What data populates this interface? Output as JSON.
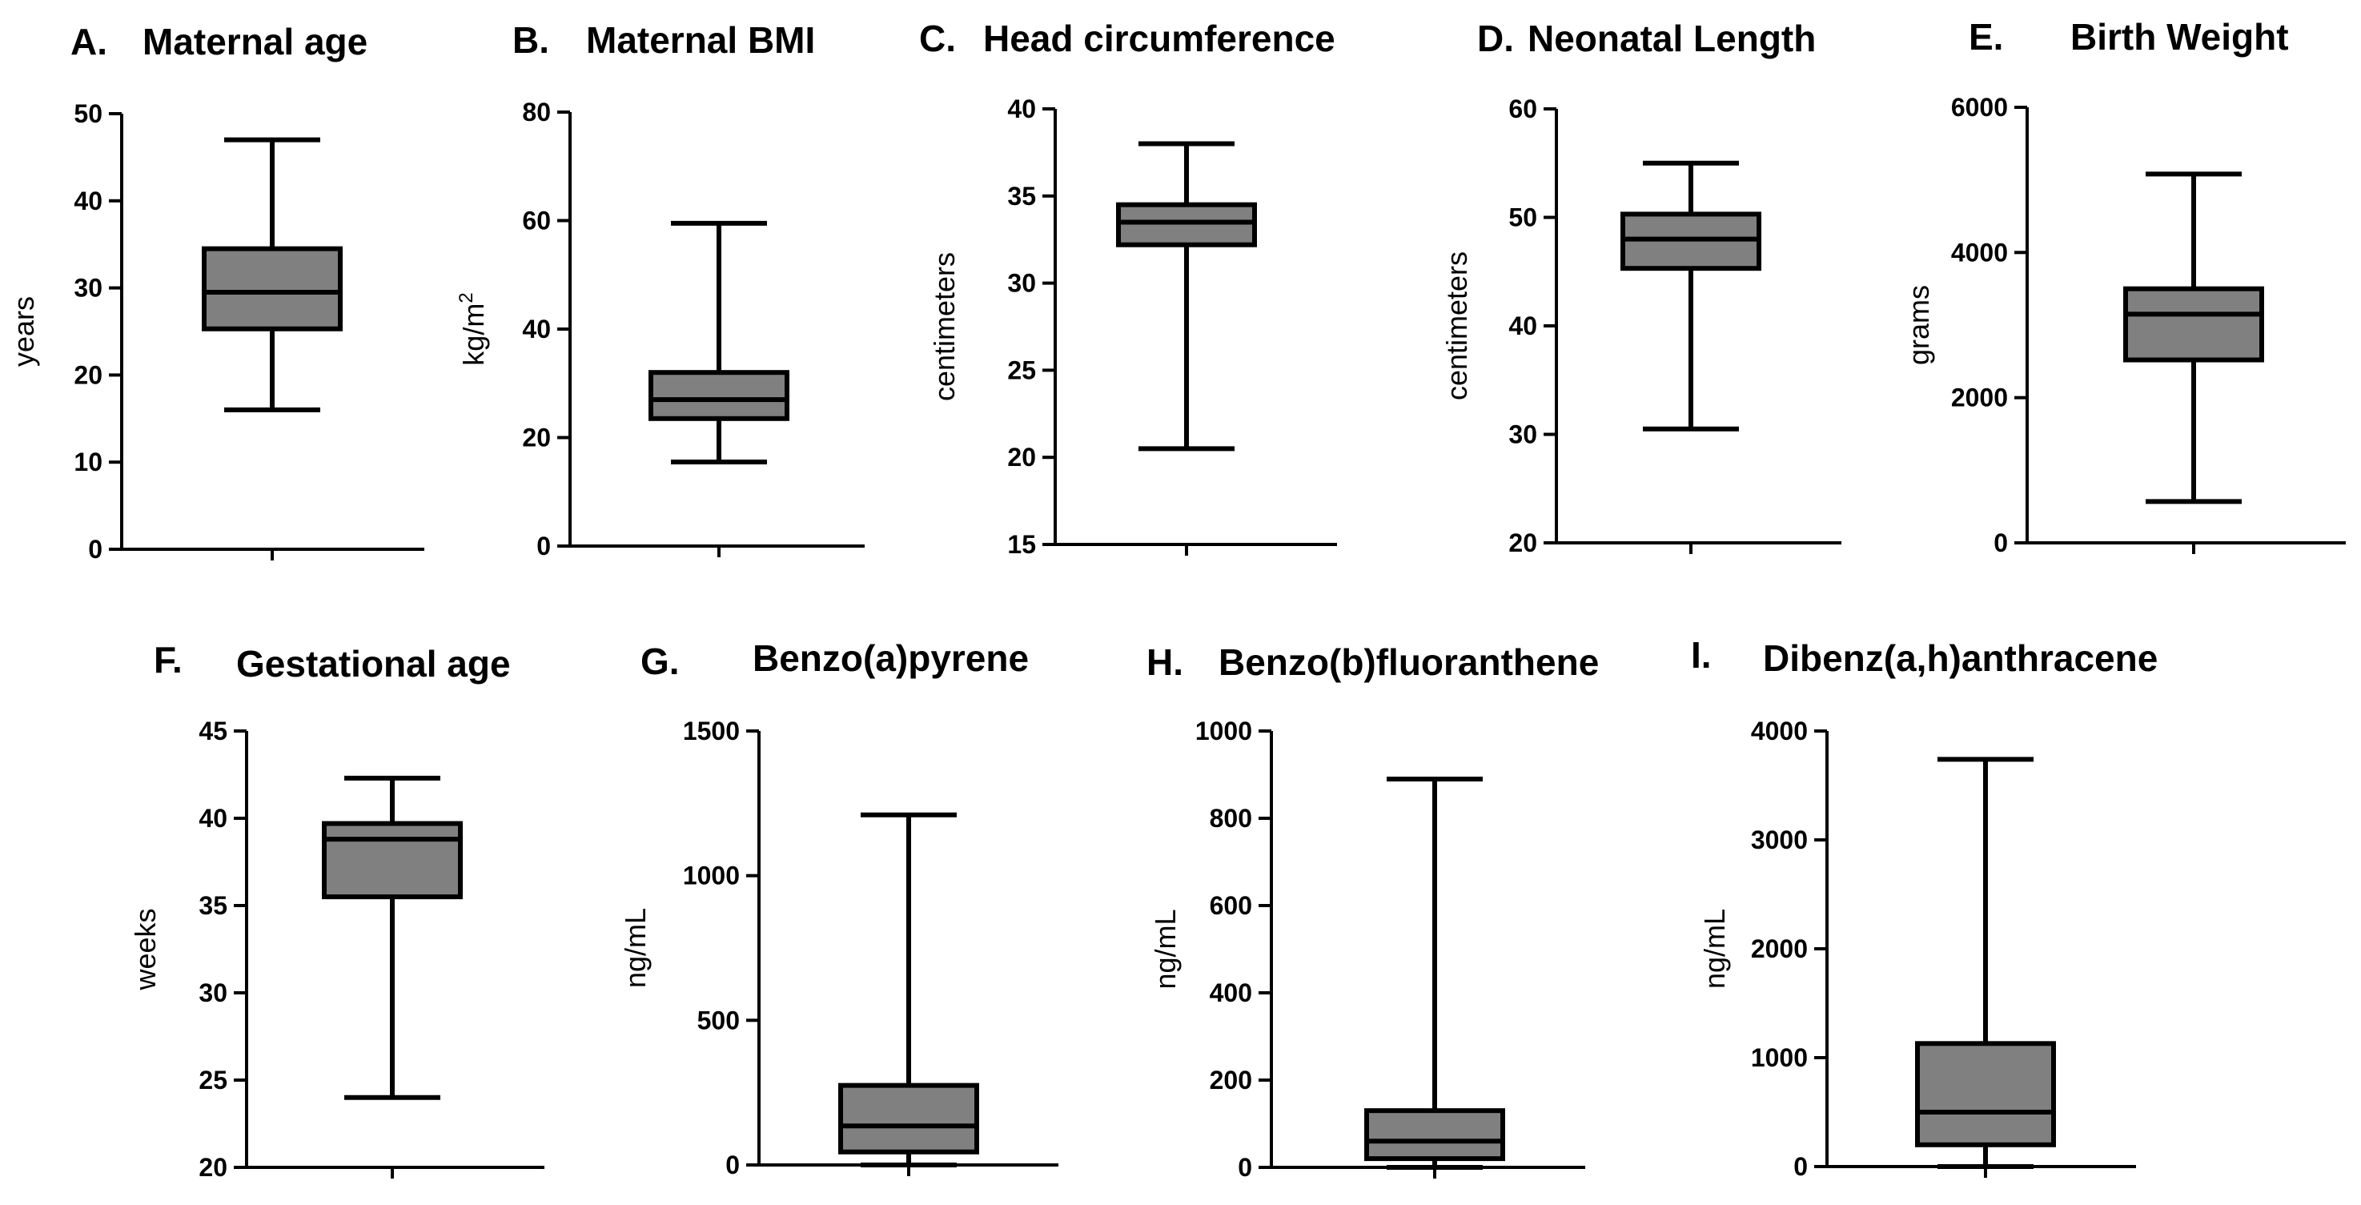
{
  "figure": {
    "box_fill": "#808080",
    "line_color": "#000000"
  },
  "chart_data": [
    {
      "panel": "A.",
      "title": "Maternal age",
      "type": "boxplot",
      "ylabel": "years",
      "ylabel_sup": "",
      "ylim": [
        0,
        50
      ],
      "yticks": [
        0,
        10,
        20,
        30,
        40,
        50
      ],
      "tick_labels": [
        "0",
        "10",
        "20",
        "30",
        "40",
        "50"
      ],
      "box": {
        "min": 16,
        "q1": 25.3,
        "median": 29.5,
        "q3": 34.5,
        "max": 47
      }
    },
    {
      "panel": "B.",
      "title": "Maternal BMI",
      "type": "boxplot",
      "ylabel": "kg/m",
      "ylabel_sup": "2",
      "ylim": [
        0,
        80
      ],
      "yticks": [
        0,
        20,
        40,
        60,
        80
      ],
      "tick_labels": [
        "0",
        "20",
        "40",
        "60",
        "80"
      ],
      "box": {
        "min": 15.5,
        "q1": 23.5,
        "median": 27,
        "q3": 32,
        "max": 59.5
      }
    },
    {
      "panel": "C.",
      "title": "Head circumference",
      "type": "boxplot",
      "ylabel": "centimeters",
      "ylabel_sup": "",
      "ylim": [
        15,
        40
      ],
      "yticks": [
        15,
        20,
        25,
        30,
        35,
        40
      ],
      "tick_labels": [
        "15",
        "20",
        "25",
        "30",
        "35",
        "40"
      ],
      "box": {
        "min": 20.5,
        "q1": 32.2,
        "median": 33.5,
        "q3": 34.5,
        "max": 38
      }
    },
    {
      "panel": "D.",
      "title": "Neonatal Length",
      "type": "boxplot",
      "ylabel": "centimeters",
      "ylabel_sup": "",
      "ylim": [
        20,
        60
      ],
      "yticks": [
        20,
        30,
        40,
        50,
        60
      ],
      "tick_labels": [
        "20",
        "30",
        "40",
        "50",
        "60"
      ],
      "box": {
        "min": 30.5,
        "q1": 45.3,
        "median": 48,
        "q3": 50.3,
        "max": 55
      }
    },
    {
      "panel": "E.",
      "title": "Birth Weight",
      "type": "boxplot",
      "ylabel": "grams",
      "ylabel_sup": "",
      "ylim": [
        0,
        6000
      ],
      "yticks": [
        0,
        2000,
        4000,
        6000
      ],
      "tick_labels": [
        "0",
        "2000",
        "4000",
        "6000"
      ],
      "box": {
        "min": 570,
        "q1": 2520,
        "median": 3150,
        "q3": 3500,
        "max": 5080
      }
    },
    {
      "panel": "F.",
      "title": "Gestational age",
      "type": "boxplot",
      "ylabel": "weeks",
      "ylabel_sup": "",
      "ylim": [
        20,
        45
      ],
      "yticks": [
        20,
        25,
        30,
        35,
        40,
        45
      ],
      "tick_labels": [
        "20",
        "25",
        "30",
        "35",
        "40",
        "45"
      ],
      "box": {
        "min": 24,
        "q1": 35.5,
        "median": 38.8,
        "q3": 39.7,
        "max": 42.3
      }
    },
    {
      "panel": "G.",
      "title": "Benzo(a)pyrene",
      "type": "boxplot",
      "ylabel": "ng/mL",
      "ylabel_sup": "",
      "ylim": [
        0,
        1500
      ],
      "yticks": [
        0,
        500,
        1000,
        1500
      ],
      "tick_labels": [
        "0",
        "500",
        "1000",
        "1500"
      ],
      "box": {
        "min": 0,
        "q1": 45,
        "median": 135,
        "q3": 275,
        "max": 1210
      }
    },
    {
      "panel": "H.",
      "title": "Benzo(b)fluoranthene",
      "type": "boxplot",
      "ylabel": "ng/mL",
      "ylabel_sup": "",
      "ylim": [
        0,
        1000
      ],
      "yticks": [
        0,
        200,
        400,
        600,
        800,
        1000
      ],
      "tick_labels": [
        "0",
        "200",
        "400",
        "600",
        "800",
        "1000"
      ],
      "box": {
        "min": 0,
        "q1": 20,
        "median": 60,
        "q3": 130,
        "max": 890
      }
    },
    {
      "panel": "I.",
      "title": "Dibenz(a,h)anthracene",
      "type": "boxplot",
      "ylabel": "ng/mL",
      "ylabel_sup": "",
      "ylim": [
        0,
        4000
      ],
      "yticks": [
        0,
        1000,
        2000,
        3000,
        4000
      ],
      "tick_labels": [
        "0",
        "1000",
        "2000",
        "3000",
        "4000"
      ],
      "box": {
        "min": 0,
        "q1": 200,
        "median": 500,
        "q3": 1130,
        "max": 3740
      }
    }
  ]
}
